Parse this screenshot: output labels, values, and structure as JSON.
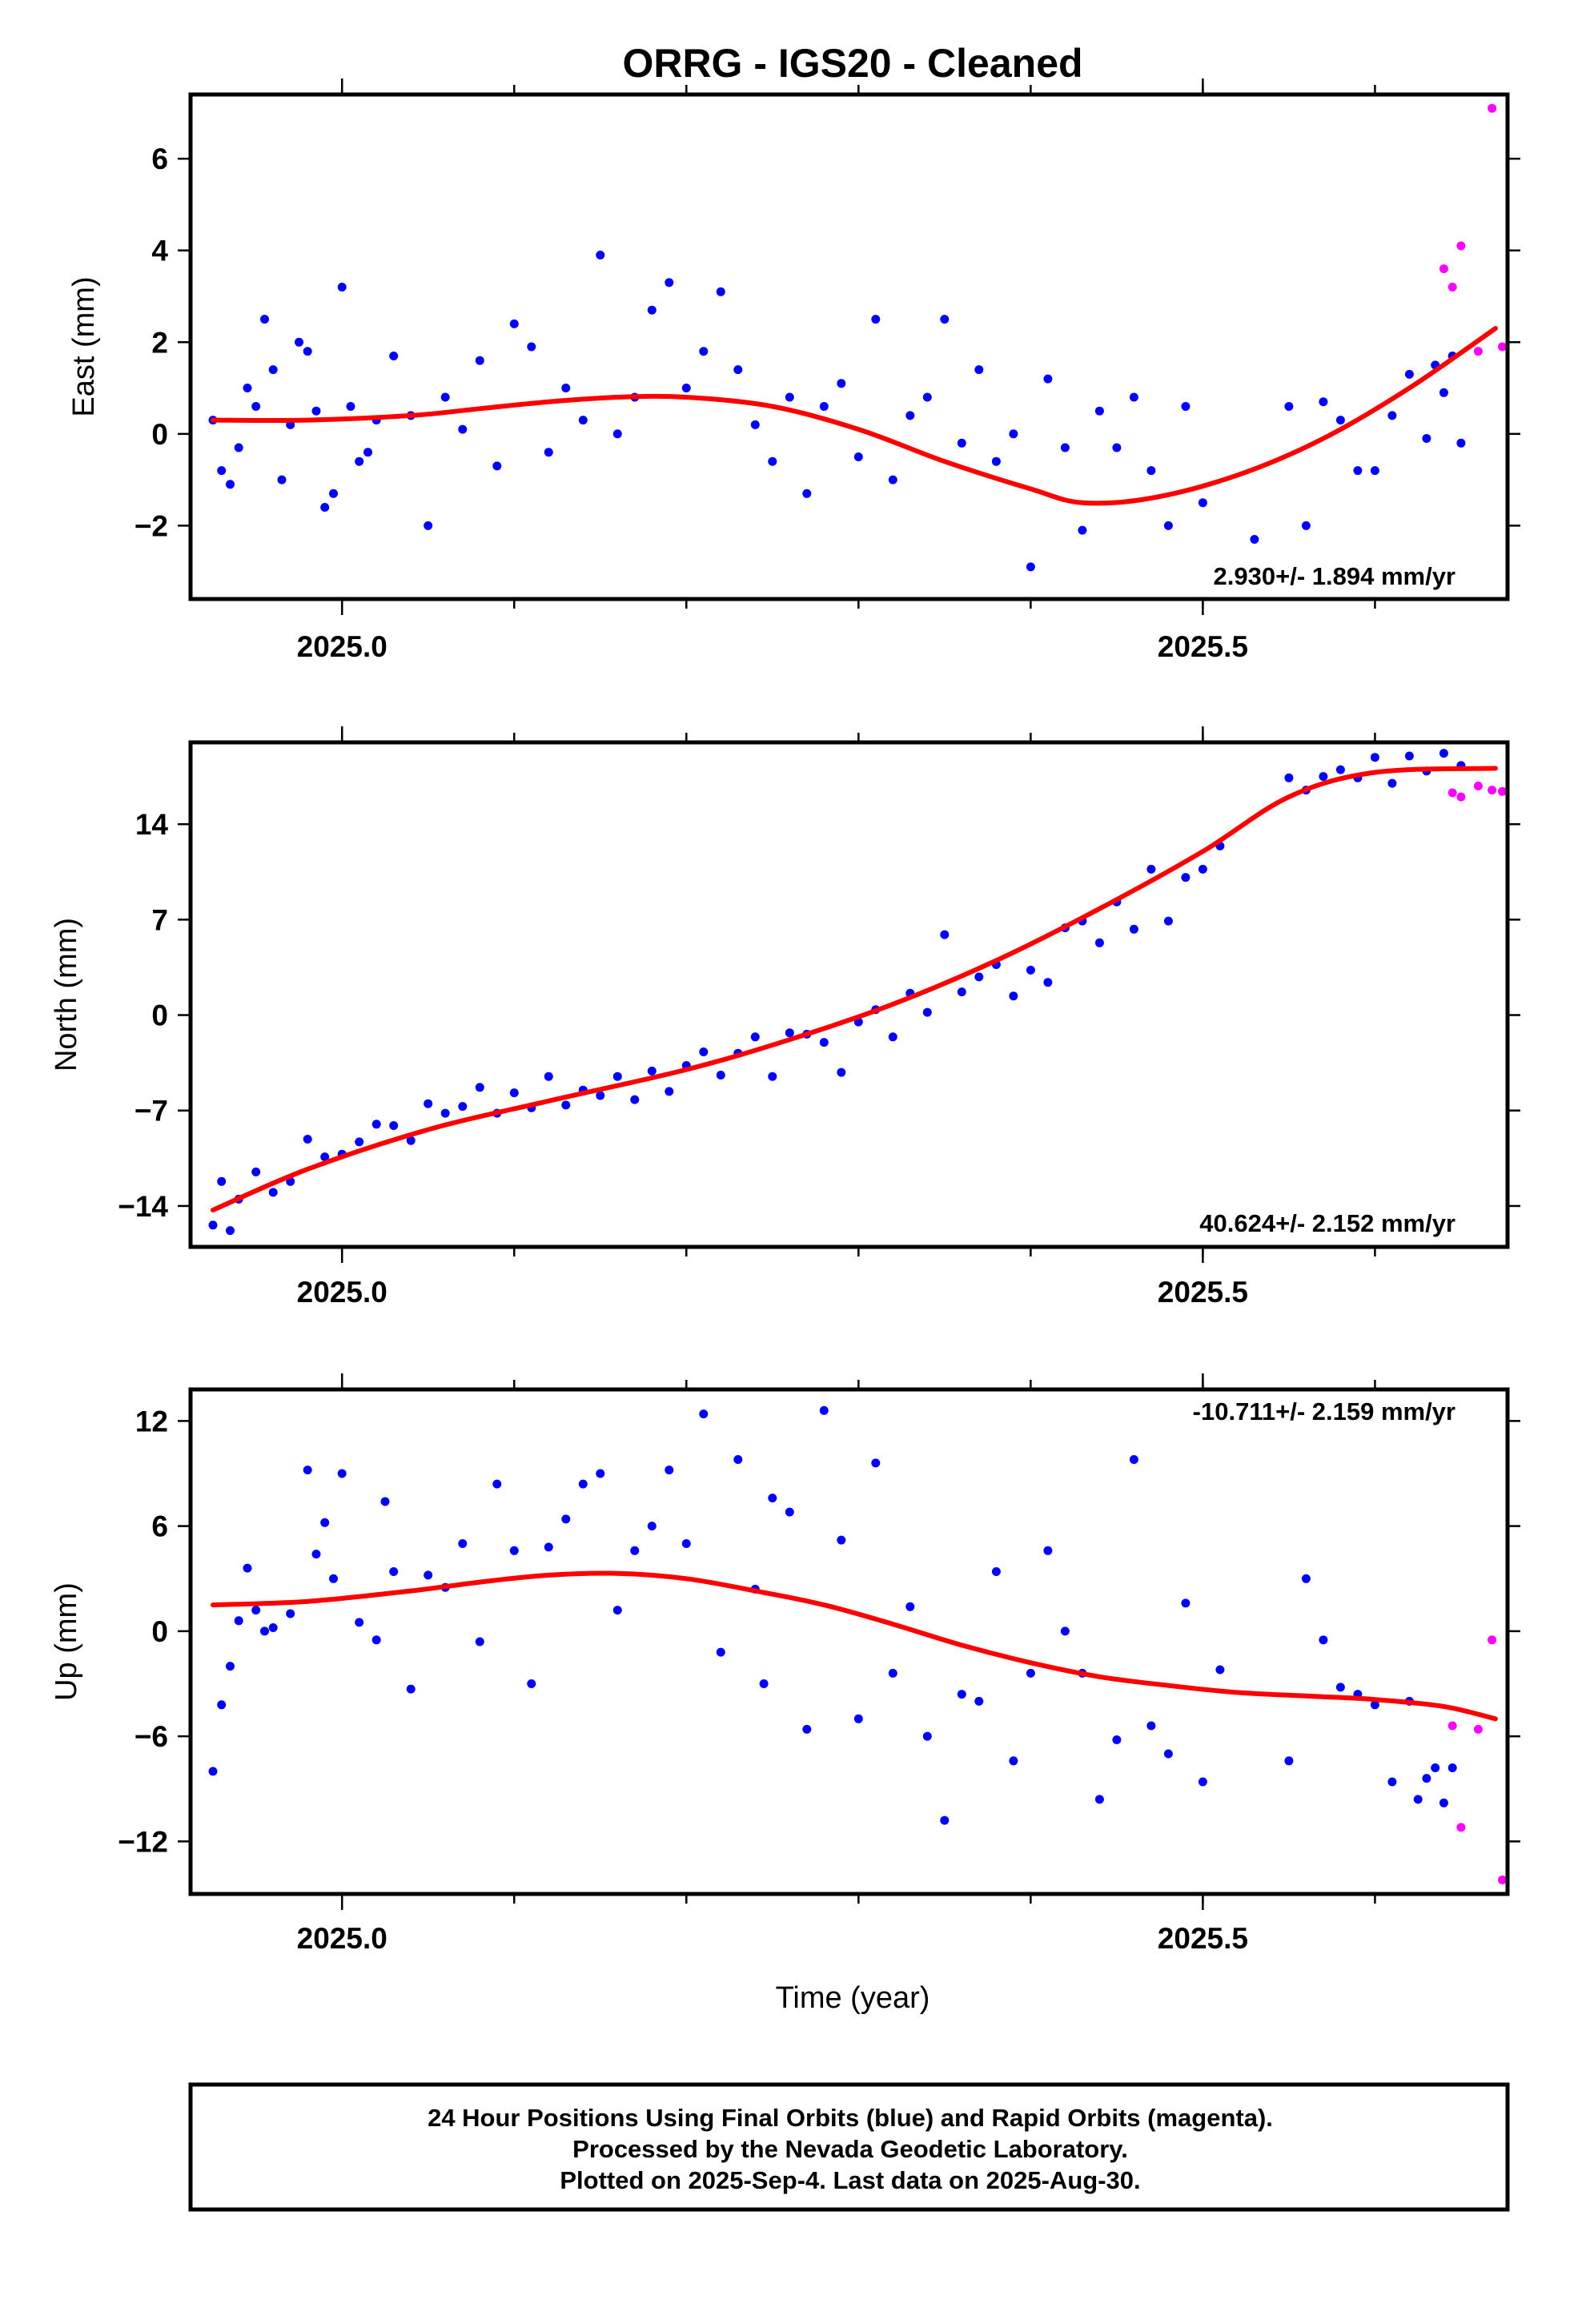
{
  "title": "ORRG  - IGS20 - Cleaned",
  "xlabel": "Time (year)",
  "caption": [
    "24 Hour Positions Using Final Orbits (blue) and Rapid Orbits (magenta).",
    "Processed by the Nevada Geodetic Laboratory.",
    "Plotted on 2025-Sep-4. Last data on 2025-Aug-30."
  ],
  "colors": {
    "final": "#0000ff",
    "rapid": "#ff00ff",
    "fit": "#ff0000",
    "frame": "#000000"
  },
  "chart_data": [
    {
      "type": "scatter",
      "ylabel": "East (mm)",
      "rate_label": "2.930+/- 1.894 mm/yr",
      "rate_position": "bottom-right",
      "xlim": [
        2024.912,
        2025.677
      ],
      "ylim": [
        -3.6,
        7.4
      ],
      "x_ticks": [
        2025.0,
        2025.5
      ],
      "x_tick_labels": [
        "2025.0",
        "2025.5"
      ],
      "y_ticks": [
        -2,
        0,
        2,
        4,
        6
      ],
      "y_tick_labels": [
        "−2",
        "0",
        "2",
        "4",
        "6"
      ],
      "grid": false,
      "fit_curve": {
        "x": [
          2024.925,
          2024.98,
          2025.04,
          2025.08,
          2025.12,
          2025.16,
          2025.2,
          2025.25,
          2025.3,
          2025.35,
          2025.4,
          2025.43,
          2025.47,
          2025.52,
          2025.57,
          2025.62,
          2025.67
        ],
        "y": [
          0.3,
          0.3,
          0.4,
          0.55,
          0.7,
          0.8,
          0.8,
          0.6,
          0.1,
          -0.6,
          -1.2,
          -1.5,
          -1.4,
          -0.9,
          -0.1,
          1.0,
          2.3
        ]
      },
      "series_final": {
        "x": [
          2024.925,
          2024.93,
          2024.935,
          2024.94,
          2024.945,
          2024.95,
          2024.955,
          2024.96,
          2024.965,
          2024.97,
          2024.975,
          2024.98,
          2024.985,
          2024.99,
          2024.995,
          2025.0,
          2025.005,
          2025.01,
          2025.015,
          2025.02,
          2025.03,
          2025.04,
          2025.05,
          2025.06,
          2025.07,
          2025.08,
          2025.09,
          2025.1,
          2025.11,
          2025.12,
          2025.13,
          2025.14,
          2025.15,
          2025.16,
          2025.17,
          2025.18,
          2025.19,
          2025.2,
          2025.21,
          2025.22,
          2025.23,
          2025.24,
          2025.25,
          2025.26,
          2025.27,
          2025.28,
          2025.29,
          2025.3,
          2025.31,
          2025.32,
          2025.33,
          2025.34,
          2025.35,
          2025.36,
          2025.37,
          2025.38,
          2025.39,
          2025.4,
          2025.41,
          2025.42,
          2025.43,
          2025.44,
          2025.45,
          2025.46,
          2025.47,
          2025.48,
          2025.49,
          2025.5,
          2025.53,
          2025.55,
          2025.56,
          2025.57,
          2025.58,
          2025.59,
          2025.6,
          2025.61,
          2025.62,
          2025.63,
          2025.635,
          2025.64,
          2025.645,
          2025.65
        ],
        "y": [
          0.3,
          -0.8,
          -1.1,
          -0.3,
          1.0,
          0.6,
          2.5,
          1.4,
          -1.0,
          0.2,
          2.0,
          1.8,
          0.5,
          -1.6,
          -1.3,
          3.2,
          0.6,
          -0.6,
          -0.4,
          0.3,
          1.7,
          0.4,
          -2.0,
          0.8,
          0.1,
          1.6,
          -0.7,
          2.4,
          1.9,
          -0.4,
          1.0,
          0.3,
          3.9,
          0.0,
          0.8,
          2.7,
          3.3,
          1.0,
          1.8,
          3.1,
          1.4,
          0.2,
          -0.6,
          0.8,
          -1.3,
          0.6,
          1.1,
          -0.5,
          2.5,
          -1.0,
          0.4,
          0.8,
          2.5,
          -0.2,
          1.4,
          -0.6,
          0.0,
          -2.9,
          1.2,
          -0.3,
          -2.1,
          0.5,
          -0.3,
          0.8,
          -0.8,
          -2.0,
          0.6,
          -1.5,
          -2.3,
          0.6,
          -2.0,
          0.7,
          0.3,
          -0.8,
          -0.8,
          0.4,
          1.3,
          -0.1,
          1.5,
          0.9,
          1.7,
          -0.2
        ]
      },
      "series_rapid": {
        "x": [
          2025.64,
          2025.645,
          2025.65,
          2025.66,
          2025.668,
          2025.674
        ],
        "y": [
          3.6,
          3.2,
          4.1,
          1.8,
          7.1,
          1.9
        ]
      }
    },
    {
      "type": "scatter",
      "ylabel": "North (mm)",
      "rate_label": "40.624+/- 2.152 mm/yr",
      "rate_position": "bottom-right",
      "xlim": [
        2024.912,
        2025.677
      ],
      "ylim": [
        -17,
        20
      ],
      "x_ticks": [
        2025.0,
        2025.5
      ],
      "x_tick_labels": [
        "2025.0",
        "2025.5"
      ],
      "y_ticks": [
        -14,
        -7,
        0,
        7,
        14
      ],
      "y_tick_labels": [
        "−14",
        "−7",
        "0",
        "7",
        "14"
      ],
      "grid": false,
      "fit_curve": {
        "x": [
          2024.925,
          2024.98,
          2025.05,
          2025.12,
          2025.2,
          2025.26,
          2025.32,
          2025.38,
          2025.44,
          2025.5,
          2025.55,
          2025.6,
          2025.67
        ],
        "y": [
          -14.3,
          -11.3,
          -8.4,
          -6.3,
          -4.0,
          -1.8,
          0.8,
          4.0,
          7.8,
          12.0,
          16.0,
          17.8,
          18.1
        ]
      },
      "series_final": {
        "x": [
          2024.925,
          2024.93,
          2024.935,
          2024.94,
          2024.95,
          2024.96,
          2024.97,
          2024.98,
          2024.99,
          2025.0,
          2025.01,
          2025.02,
          2025.03,
          2025.04,
          2025.05,
          2025.06,
          2025.07,
          2025.08,
          2025.09,
          2025.1,
          2025.11,
          2025.12,
          2025.13,
          2025.14,
          2025.15,
          2025.16,
          2025.17,
          2025.18,
          2025.19,
          2025.2,
          2025.21,
          2025.22,
          2025.23,
          2025.24,
          2025.25,
          2025.26,
          2025.27,
          2025.28,
          2025.29,
          2025.3,
          2025.31,
          2025.32,
          2025.33,
          2025.34,
          2025.35,
          2025.36,
          2025.37,
          2025.38,
          2025.39,
          2025.4,
          2025.41,
          2025.42,
          2025.43,
          2025.44,
          2025.45,
          2025.46,
          2025.47,
          2025.48,
          2025.49,
          2025.5,
          2025.51,
          2025.55,
          2025.56,
          2025.57,
          2025.58,
          2025.59,
          2025.6,
          2025.61,
          2025.62,
          2025.63,
          2025.64,
          2025.65
        ],
        "y": [
          -15.4,
          -12.2,
          -15.8,
          -13.5,
          -11.5,
          -13.0,
          -12.2,
          -9.1,
          -10.4,
          -10.2,
          -9.3,
          -8.0,
          -8.1,
          -9.2,
          -6.5,
          -7.2,
          -6.7,
          -5.3,
          -7.2,
          -5.7,
          -6.8,
          -4.5,
          -6.6,
          -5.5,
          -5.9,
          -4.5,
          -6.2,
          -4.1,
          -5.6,
          -3.7,
          -2.7,
          -4.4,
          -2.8,
          -1.6,
          -4.5,
          -1.3,
          -1.4,
          -2.0,
          -4.2,
          -0.5,
          0.4,
          -1.6,
          1.6,
          0.2,
          5.9,
          1.7,
          2.8,
          3.7,
          1.4,
          3.3,
          2.4,
          6.4,
          6.9,
          5.3,
          8.3,
          6.3,
          10.7,
          6.9,
          10.1,
          10.7,
          12.4,
          17.4,
          16.5,
          17.5,
          18.0,
          17.4,
          18.9,
          17.0,
          19.0,
          17.9,
          19.2,
          18.3
        ]
      },
      "series_rapid": {
        "x": [
          2025.645,
          2025.65,
          2025.66,
          2025.668,
          2025.674
        ],
        "y": [
          16.3,
          16.0,
          16.8,
          16.5,
          16.4
        ]
      }
    },
    {
      "type": "scatter",
      "ylabel": "Up (mm)",
      "rate_label": "-10.711+/- 2.159 mm/yr",
      "rate_position": "top-right",
      "xlim": [
        2024.912,
        2025.677
      ],
      "ylim": [
        -15,
        13.8
      ],
      "x_ticks": [
        2025.0,
        2025.5
      ],
      "x_tick_labels": [
        "2025.0",
        "2025.5"
      ],
      "y_ticks": [
        -12,
        -6,
        0,
        6,
        12
      ],
      "y_tick_labels": [
        "−12",
        "−6",
        "0",
        "6",
        "12"
      ],
      "grid": false,
      "fit_curve": {
        "x": [
          2024.925,
          2024.98,
          2025.04,
          2025.08,
          2025.12,
          2025.16,
          2025.2,
          2025.24,
          2025.28,
          2025.32,
          2025.36,
          2025.4,
          2025.44,
          2025.48,
          2025.52,
          2025.56,
          2025.6,
          2025.64,
          2025.67
        ],
        "y": [
          1.5,
          1.7,
          2.3,
          2.8,
          3.2,
          3.3,
          3.0,
          2.3,
          1.5,
          0.4,
          -0.8,
          -1.8,
          -2.6,
          -3.1,
          -3.5,
          -3.7,
          -3.9,
          -4.3,
          -5.0
        ]
      },
      "series_final": {
        "x": [
          2024.925,
          2024.93,
          2024.935,
          2024.94,
          2024.945,
          2024.95,
          2024.955,
          2024.96,
          2024.97,
          2024.98,
          2024.985,
          2024.99,
          2024.995,
          2025.0,
          2025.01,
          2025.02,
          2025.025,
          2025.03,
          2025.04,
          2025.05,
          2025.06,
          2025.07,
          2025.08,
          2025.09,
          2025.1,
          2025.11,
          2025.12,
          2025.13,
          2025.14,
          2025.15,
          2025.16,
          2025.17,
          2025.18,
          2025.19,
          2025.2,
          2025.21,
          2025.22,
          2025.23,
          2025.24,
          2025.245,
          2025.25,
          2025.26,
          2025.27,
          2025.28,
          2025.29,
          2025.3,
          2025.31,
          2025.32,
          2025.33,
          2025.34,
          2025.35,
          2025.36,
          2025.37,
          2025.38,
          2025.39,
          2025.4,
          2025.41,
          2025.42,
          2025.43,
          2025.44,
          2025.45,
          2025.46,
          2025.47,
          2025.48,
          2025.49,
          2025.5,
          2025.51,
          2025.55,
          2025.56,
          2025.57,
          2025.58,
          2025.59,
          2025.6,
          2025.61,
          2025.62,
          2025.625,
          2025.63,
          2025.635,
          2025.64,
          2025.645
        ],
        "y": [
          -8.0,
          -4.2,
          -2.0,
          0.6,
          3.6,
          1.2,
          0.0,
          0.2,
          1.0,
          9.2,
          4.4,
          6.2,
          3.0,
          9.0,
          0.5,
          -0.5,
          7.4,
          3.4,
          -3.3,
          3.2,
          2.5,
          5.0,
          -0.6,
          8.4,
          4.6,
          -3.0,
          4.8,
          6.4,
          8.4,
          9.0,
          1.2,
          4.6,
          6.0,
          9.2,
          5.0,
          12.4,
          -1.2,
          9.8,
          2.4,
          -3.0,
          7.6,
          6.8,
          -5.6,
          12.6,
          5.2,
          -5.0,
          9.6,
          -2.4,
          1.4,
          -6.0,
          -10.8,
          -3.6,
          -4.0,
          3.4,
          -7.4,
          -2.4,
          4.6,
          0.0,
          -2.4,
          -9.6,
          -6.2,
          9.8,
          -5.4,
          -7.0,
          1.6,
          -8.6,
          -2.2,
          -7.4,
          3.0,
          -0.5,
          -3.2,
          -3.6,
          -4.2,
          -8.6,
          -4.0,
          -9.6,
          -8.4,
          -7.8,
          -9.8,
          -7.8
        ]
      },
      "series_rapid": {
        "x": [
          2025.645,
          2025.65,
          2025.66,
          2025.668,
          2025.674
        ],
        "y": [
          -5.4,
          -11.2,
          -5.6,
          -0.5,
          -14.2
        ]
      }
    }
  ]
}
